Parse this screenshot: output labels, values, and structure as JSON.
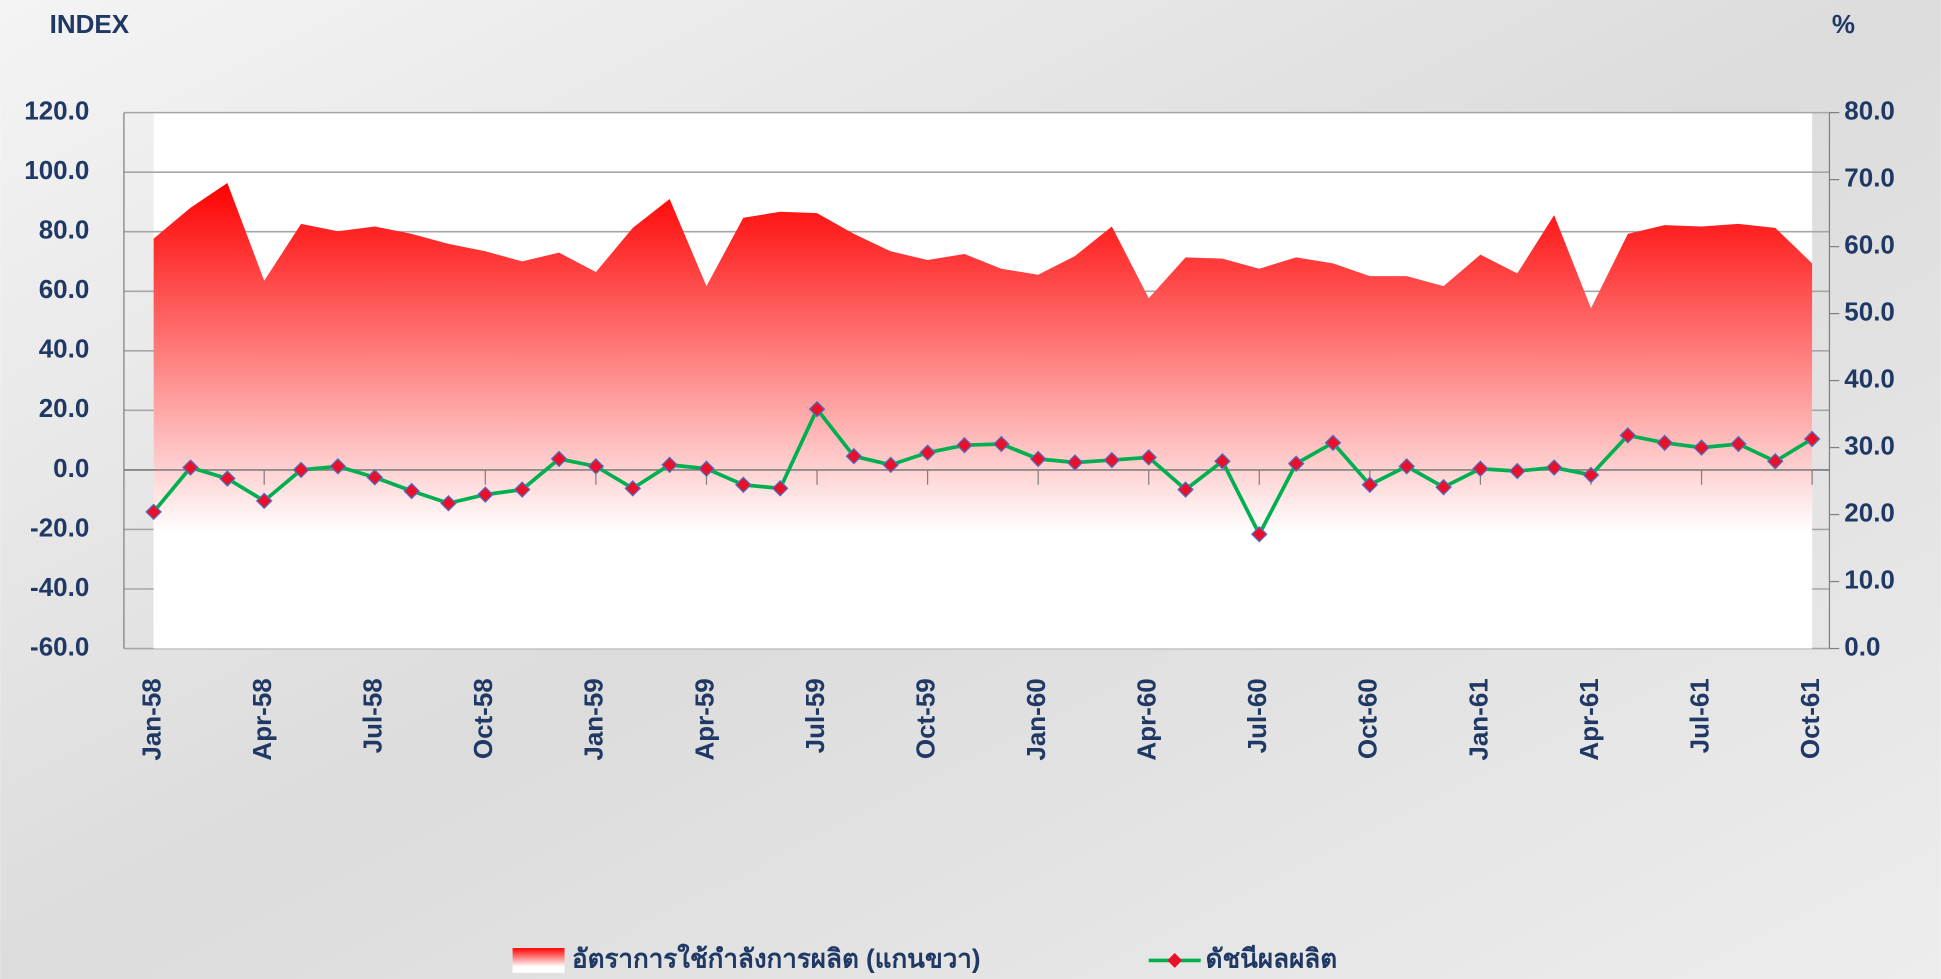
{
  "chart_data": {
    "type": "line",
    "y_axis_title": "INDEX",
    "y2_axis_title": "%",
    "categories": [
      "Jan-58",
      null,
      null,
      "Apr-58",
      null,
      null,
      "Jul-58",
      null,
      null,
      "Oct-58",
      null,
      null,
      "Jan-59",
      null,
      null,
      "Apr-59",
      null,
      null,
      "Jul-59",
      null,
      null,
      "Oct-59",
      null,
      null,
      "Jan-60",
      null,
      null,
      "Apr-60",
      null,
      null,
      "Jul-60",
      null,
      null,
      "Oct-60",
      null,
      null,
      "Jan-61",
      null,
      null,
      "Apr-61",
      null,
      null,
      "Jul-61",
      null,
      null,
      "Oct-61"
    ],
    "series": [
      {
        "name": "อัตราการใช้กำลังการผลิต (แกนขวา)",
        "type": "area",
        "axis": "y2",
        "color": "#ff0000",
        "values": [
          61.2,
          65.8,
          69.5,
          54.9,
          63.4,
          62.3,
          63.0,
          61.9,
          60.4,
          59.3,
          57.8,
          59.1,
          56.2,
          62.8,
          67.1,
          54.1,
          64.3,
          65.2,
          65.0,
          61.9,
          59.3,
          58.0,
          58.9,
          56.7,
          55.8,
          58.6,
          63.0,
          52.3,
          58.4,
          58.2,
          56.7,
          58.4,
          57.5,
          55.6,
          55.6,
          54.1,
          58.8,
          56.0,
          64.7,
          50.8,
          61.9,
          63.2,
          63.0,
          63.4,
          62.8,
          57.5
        ]
      },
      {
        "name": "ดัชนีผลผลิต",
        "type": "line",
        "axis": "y",
        "color": "#00b050",
        "marker_color": "#e8102a",
        "values": [
          -14.1,
          0.8,
          -2.9,
          -10.4,
          0.0,
          1.2,
          -2.5,
          -7.1,
          -11.2,
          -8.3,
          -6.6,
          3.7,
          1.2,
          -6.2,
          1.7,
          0.4,
          -5.0,
          -6.2,
          20.4,
          4.6,
          1.7,
          5.8,
          8.3,
          8.7,
          3.7,
          2.5,
          3.3,
          4.2,
          -6.6,
          2.9,
          -21.6,
          2.1,
          9.1,
          -5.0,
          1.2,
          -5.8,
          0.4,
          -0.4,
          0.8,
          -1.7,
          11.6,
          9.1,
          7.5,
          8.7,
          2.9,
          10.4
        ]
      }
    ],
    "ylim": [
      -60,
      120
    ],
    "yticks": [
      {
        "value": -60,
        "label": "-60.0"
      },
      {
        "value": -40,
        "label": "-40.0"
      },
      {
        "value": -20,
        "label": "-20.0"
      },
      {
        "value": 0,
        "label": "0.0"
      },
      {
        "value": 20,
        "label": "20.0"
      },
      {
        "value": 40,
        "label": "40.0"
      },
      {
        "value": 60,
        "label": "60.0"
      },
      {
        "value": 80,
        "label": "80.0"
      },
      {
        "value": 100,
        "label": "100.0"
      },
      {
        "value": 120,
        "label": "120.0"
      }
    ],
    "y2lim": [
      0,
      80
    ],
    "y2ticks": [
      {
        "value": 0,
        "label": "0.0"
      },
      {
        "value": 10,
        "label": "10.0"
      },
      {
        "value": 20,
        "label": "20.0"
      },
      {
        "value": 30,
        "label": "30.0"
      },
      {
        "value": 40,
        "label": "40.0"
      },
      {
        "value": 50,
        "label": "50.0"
      },
      {
        "value": 60,
        "label": "60.0"
      },
      {
        "value": 70,
        "label": "70.0"
      },
      {
        "value": 80,
        "label": "80.0"
      }
    ],
    "grid": true,
    "legend": "bottom"
  }
}
